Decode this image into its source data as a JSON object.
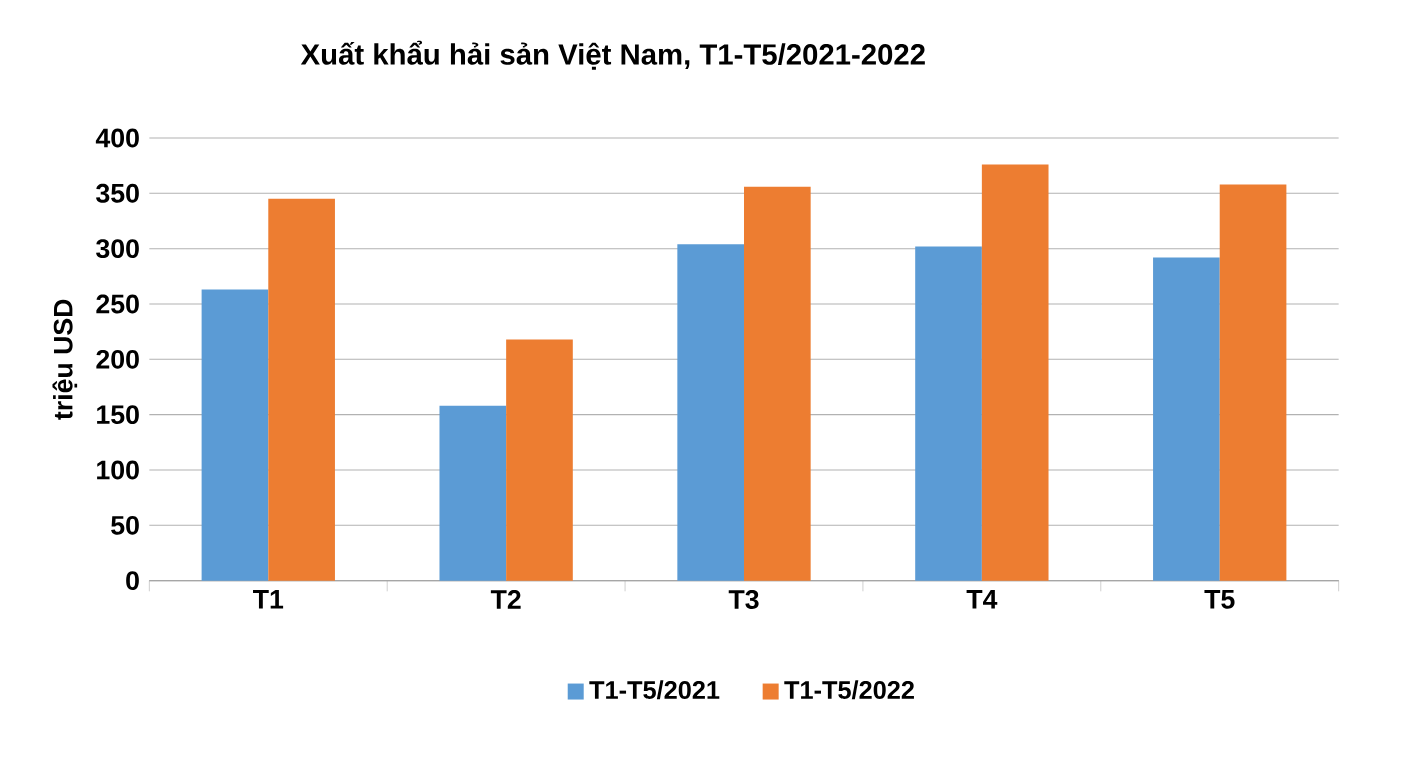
{
  "chart_data": {
    "type": "bar",
    "title": "Xuất khẩu hải sản Việt Nam, T1-T5/2021-2022",
    "ylabel": "triệu USD",
    "categories": [
      "T1",
      "T2",
      "T3",
      "T4",
      "T5"
    ],
    "series": [
      {
        "name": "T1-T5/2021",
        "color": "#5b9bd5",
        "values": [
          263,
          158,
          304,
          302,
          292
        ]
      },
      {
        "name": "T1-T5/2022",
        "color": "#ed7d31",
        "values": [
          345,
          218,
          356,
          376,
          358
        ]
      }
    ],
    "ylim": [
      0,
      400
    ],
    "yticks": [
      0,
      50,
      100,
      150,
      200,
      250,
      300,
      350,
      400
    ],
    "grid": "y",
    "legend": "bottom"
  }
}
